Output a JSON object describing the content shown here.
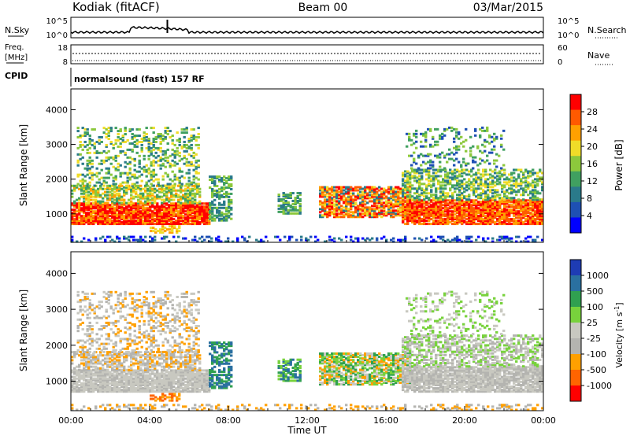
{
  "header": {
    "station": "Kodiak (fitACF)",
    "beam": "Beam 00",
    "date": "03/Mar/2015"
  },
  "sky_panel": {
    "left_label": "N.Sky",
    "right_label": "N.Search",
    "left_ticks": [
      "10^5",
      "10^0"
    ],
    "right_ticks": [
      "10^5",
      "10^0"
    ]
  },
  "freq_panel": {
    "left_label_1": "Freq.",
    "left_label_2": "[MHz]",
    "right_label": "Nave",
    "left_ticks": [
      "18",
      "8"
    ],
    "right_ticks": [
      "60",
      "0"
    ]
  },
  "cpid": {
    "label": "CPID",
    "text": "normalsound (fast) 157 RF"
  },
  "chart_data": [
    {
      "type": "heatmap",
      "name": "power",
      "ylabel": "Slant Range [km]",
      "ylim": [
        180,
        4600
      ],
      "yticks": [
        1000,
        2000,
        3000,
        4000
      ],
      "xlim": [
        0,
        24
      ],
      "colorbar_label": "Power [dB]",
      "colorbar_ticks": [
        "28",
        "24",
        "20",
        "16",
        "12",
        "8",
        "4"
      ],
      "colorbar_colors": [
        "#ff0000",
        "#ff5a00",
        "#ffa000",
        "#f0dc28",
        "#8cc83c",
        "#40a060",
        "#2a7a8a",
        "#1e50b4",
        "#0000ff"
      ]
    },
    {
      "type": "heatmap",
      "name": "velocity",
      "ylabel": "Slant Range [km]",
      "ylim": [
        180,
        4600
      ],
      "yticks": [
        1000,
        2000,
        3000,
        4000
      ],
      "xlim": [
        0,
        24
      ],
      "xlabel": "Time UT",
      "xtick_labels": [
        "00:00",
        "04:00",
        "08:00",
        "12:00",
        "16:00",
        "20:00",
        "00:00"
      ],
      "colorbar_label": "Velocity [m s",
      "colorbar_ticks": [
        "1000",
        "500",
        "100",
        "25",
        "-25",
        "-100",
        "-500",
        "-1000"
      ],
      "colorbar_colors": [
        "#1e3cb4",
        "#2a70a0",
        "#30a050",
        "#78d23c",
        "#c8c8c0",
        "#b4b4b0",
        "#ffa000",
        "#ff6400",
        "#ff0000"
      ]
    }
  ]
}
